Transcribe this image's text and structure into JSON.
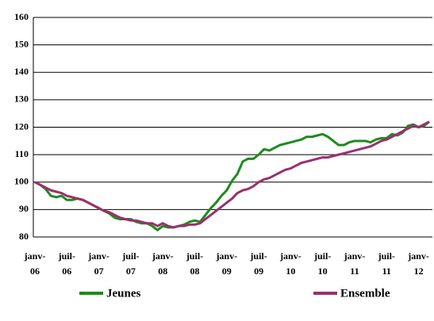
{
  "chart_data": {
    "type": "line",
    "categories": [
      "janv-06",
      null,
      null,
      null,
      null,
      null,
      "juil-06",
      null,
      null,
      null,
      null,
      null,
      "janv-07",
      null,
      null,
      null,
      null,
      null,
      "juil-07",
      null,
      null,
      null,
      null,
      null,
      "janv-08",
      null,
      null,
      null,
      null,
      null,
      "juil-08",
      null,
      null,
      null,
      null,
      null,
      "janv-09",
      null,
      null,
      null,
      null,
      null,
      "juil-09",
      null,
      null,
      null,
      null,
      null,
      "janv-10",
      null,
      null,
      null,
      null,
      null,
      "juil-10",
      null,
      null,
      null,
      null,
      null,
      "janv-11",
      null,
      null,
      null,
      null,
      null,
      "juil-11",
      null,
      null,
      null,
      null,
      null,
      "janv-12",
      null,
      null
    ],
    "series": [
      {
        "name": "Jeunes",
        "color": "#1e8a1e",
        "values": [
          100,
          99,
          97.5,
          95,
          94.5,
          95,
          93.5,
          93.5,
          94,
          93.5,
          92.5,
          91.5,
          90.5,
          89.5,
          88.5,
          87,
          86.5,
          86.5,
          86.5,
          85.5,
          85,
          85,
          84,
          82.5,
          84,
          83.5,
          83.5,
          84,
          84.5,
          85.5,
          86,
          85.5,
          88,
          90.5,
          92.5,
          95,
          97,
          100.5,
          103,
          107.5,
          108.5,
          108.5,
          110,
          112,
          111.5,
          112.5,
          113.5,
          114,
          114.5,
          115,
          115.5,
          116.5,
          116.5,
          117,
          117.5,
          116.5,
          115,
          113.5,
          113.5,
          114.5,
          115,
          115,
          115,
          114.5,
          115.5,
          116,
          116,
          117.5,
          117,
          118,
          120.5,
          121,
          120,
          120.5,
          122
        ]
      },
      {
        "name": "Ensemble",
        "color": "#9c2f6e",
        "values": [
          100,
          99,
          98,
          97,
          96.5,
          96,
          95,
          94.5,
          94,
          93.5,
          92.5,
          91.5,
          90.5,
          89.5,
          89,
          88,
          87,
          86.5,
          86,
          86,
          85.5,
          85,
          85,
          84,
          85,
          84,
          83.5,
          84,
          84,
          84.5,
          84.5,
          85,
          86.5,
          88,
          89.5,
          91,
          92.5,
          94,
          96,
          97,
          97.5,
          98.5,
          100,
          101,
          101.5,
          102.5,
          103.5,
          104.5,
          105,
          106,
          107,
          107.5,
          108,
          108.5,
          109,
          109,
          109.5,
          110,
          110.5,
          111,
          111.5,
          112,
          112.5,
          113,
          114,
          115,
          115.5,
          116.5,
          117.5,
          118.5,
          119.5,
          120.5,
          120,
          121,
          122
        ]
      }
    ],
    "ylim": [
      80,
      160
    ],
    "yticks": [
      80,
      90,
      100,
      110,
      120,
      130,
      140,
      150,
      160
    ],
    "grid": true
  }
}
